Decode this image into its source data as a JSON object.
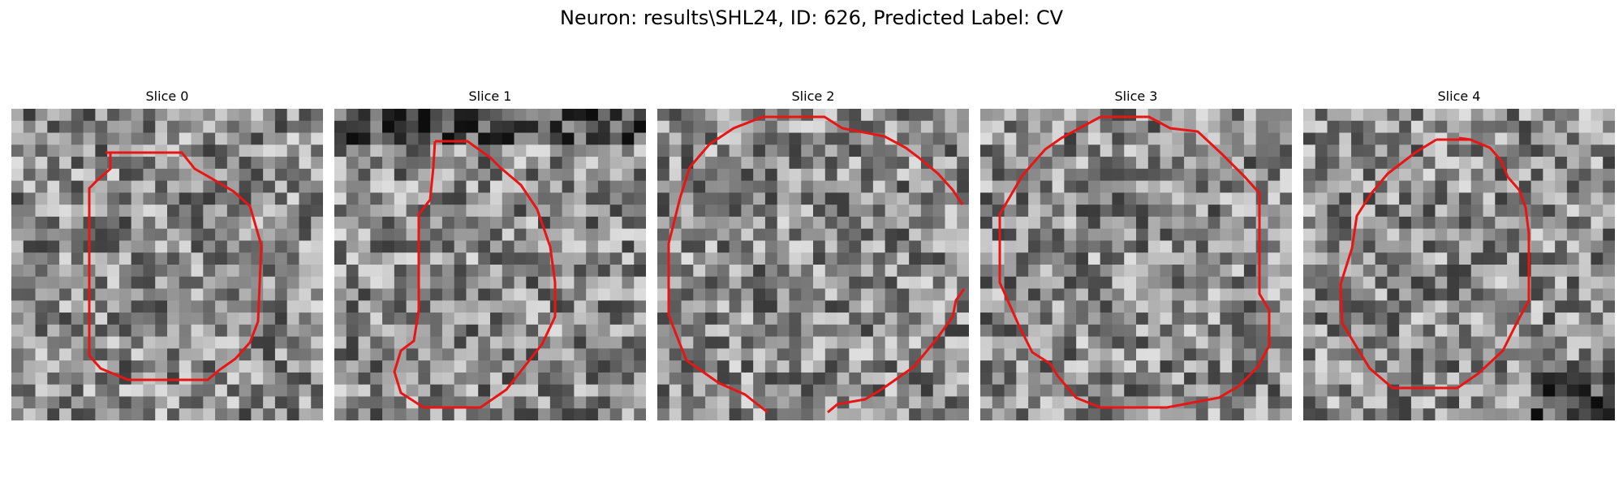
{
  "figure": {
    "title": "Neuron: results\\SHL24, ID: 626, Predicted Label: CV",
    "colors": {
      "contour": "#e81515",
      "background": "#ffffff"
    }
  },
  "slices": [
    {
      "title": "Slice 0"
    },
    {
      "title": "Slice 1"
    },
    {
      "title": "Slice 2"
    },
    {
      "title": "Slice 3"
    },
    {
      "title": "Slice 4"
    }
  ]
}
